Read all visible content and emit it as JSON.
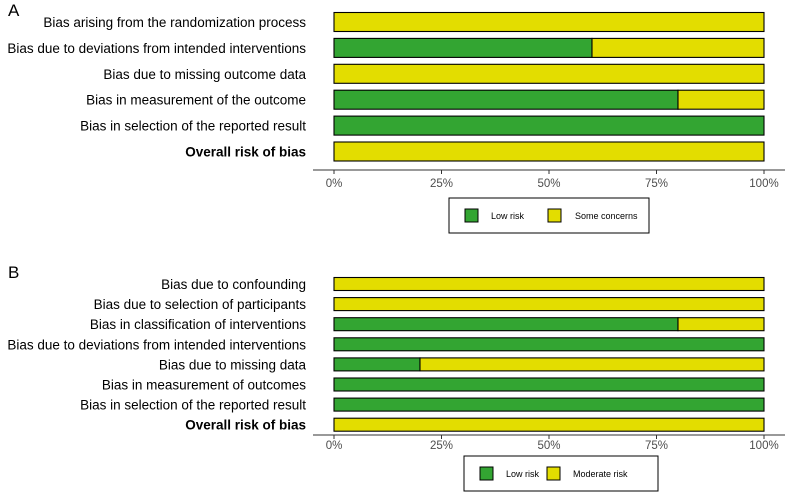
{
  "colors": {
    "low": "#33a532",
    "concern": "#e3dd00",
    "axis": "#333333",
    "grid": "#4d4d4d"
  },
  "chart_data": [
    {
      "type": "bar",
      "orientation": "horizontal",
      "stacked": true,
      "panel_label": "A",
      "categories": [
        "Bias arising from the randomization process",
        "Bias due to deviations from intended interventions",
        "Bias due to missing outcome data",
        "Bias in measurement of the outcome",
        "Bias in selection of the reported result",
        "Overall risk of bias"
      ],
      "bold_categories": [
        "Overall risk of bias"
      ],
      "series": [
        {
          "name": "Low risk",
          "color_key": "low",
          "values": [
            0,
            60,
            0,
            80,
            100,
            0
          ]
        },
        {
          "name": "Some concerns",
          "color_key": "concern",
          "values": [
            100,
            40,
            100,
            20,
            0,
            100
          ]
        }
      ],
      "x_ticks": [
        "0%",
        "25%",
        "50%",
        "75%",
        "100%"
      ],
      "xlim": [
        0,
        100
      ],
      "legend": [
        "Low risk",
        "Some concerns"
      ],
      "legend_position": "bottom"
    },
    {
      "type": "bar",
      "orientation": "horizontal",
      "stacked": true,
      "panel_label": "B",
      "categories": [
        "Bias due to confounding",
        "Bias due to selection of participants",
        "Bias in classification of interventions",
        "Bias due to deviations from intended interventions",
        "Bias due to missing data",
        "Bias in measurement of outcomes",
        "Bias in selection of the reported result",
        "Overall risk of bias"
      ],
      "bold_categories": [
        "Overall risk of bias"
      ],
      "series": [
        {
          "name": "Low risk",
          "color_key": "low",
          "values": [
            0,
            0,
            80,
            100,
            20,
            100,
            100,
            0
          ]
        },
        {
          "name": "Moderate risk",
          "color_key": "concern",
          "values": [
            100,
            100,
            20,
            0,
            80,
            0,
            0,
            100
          ]
        }
      ],
      "x_ticks": [
        "0%",
        "25%",
        "50%",
        "75%",
        "100%"
      ],
      "xlim": [
        0,
        100
      ],
      "legend": [
        "Low risk",
        "Moderate risk"
      ],
      "legend_position": "bottom"
    }
  ]
}
